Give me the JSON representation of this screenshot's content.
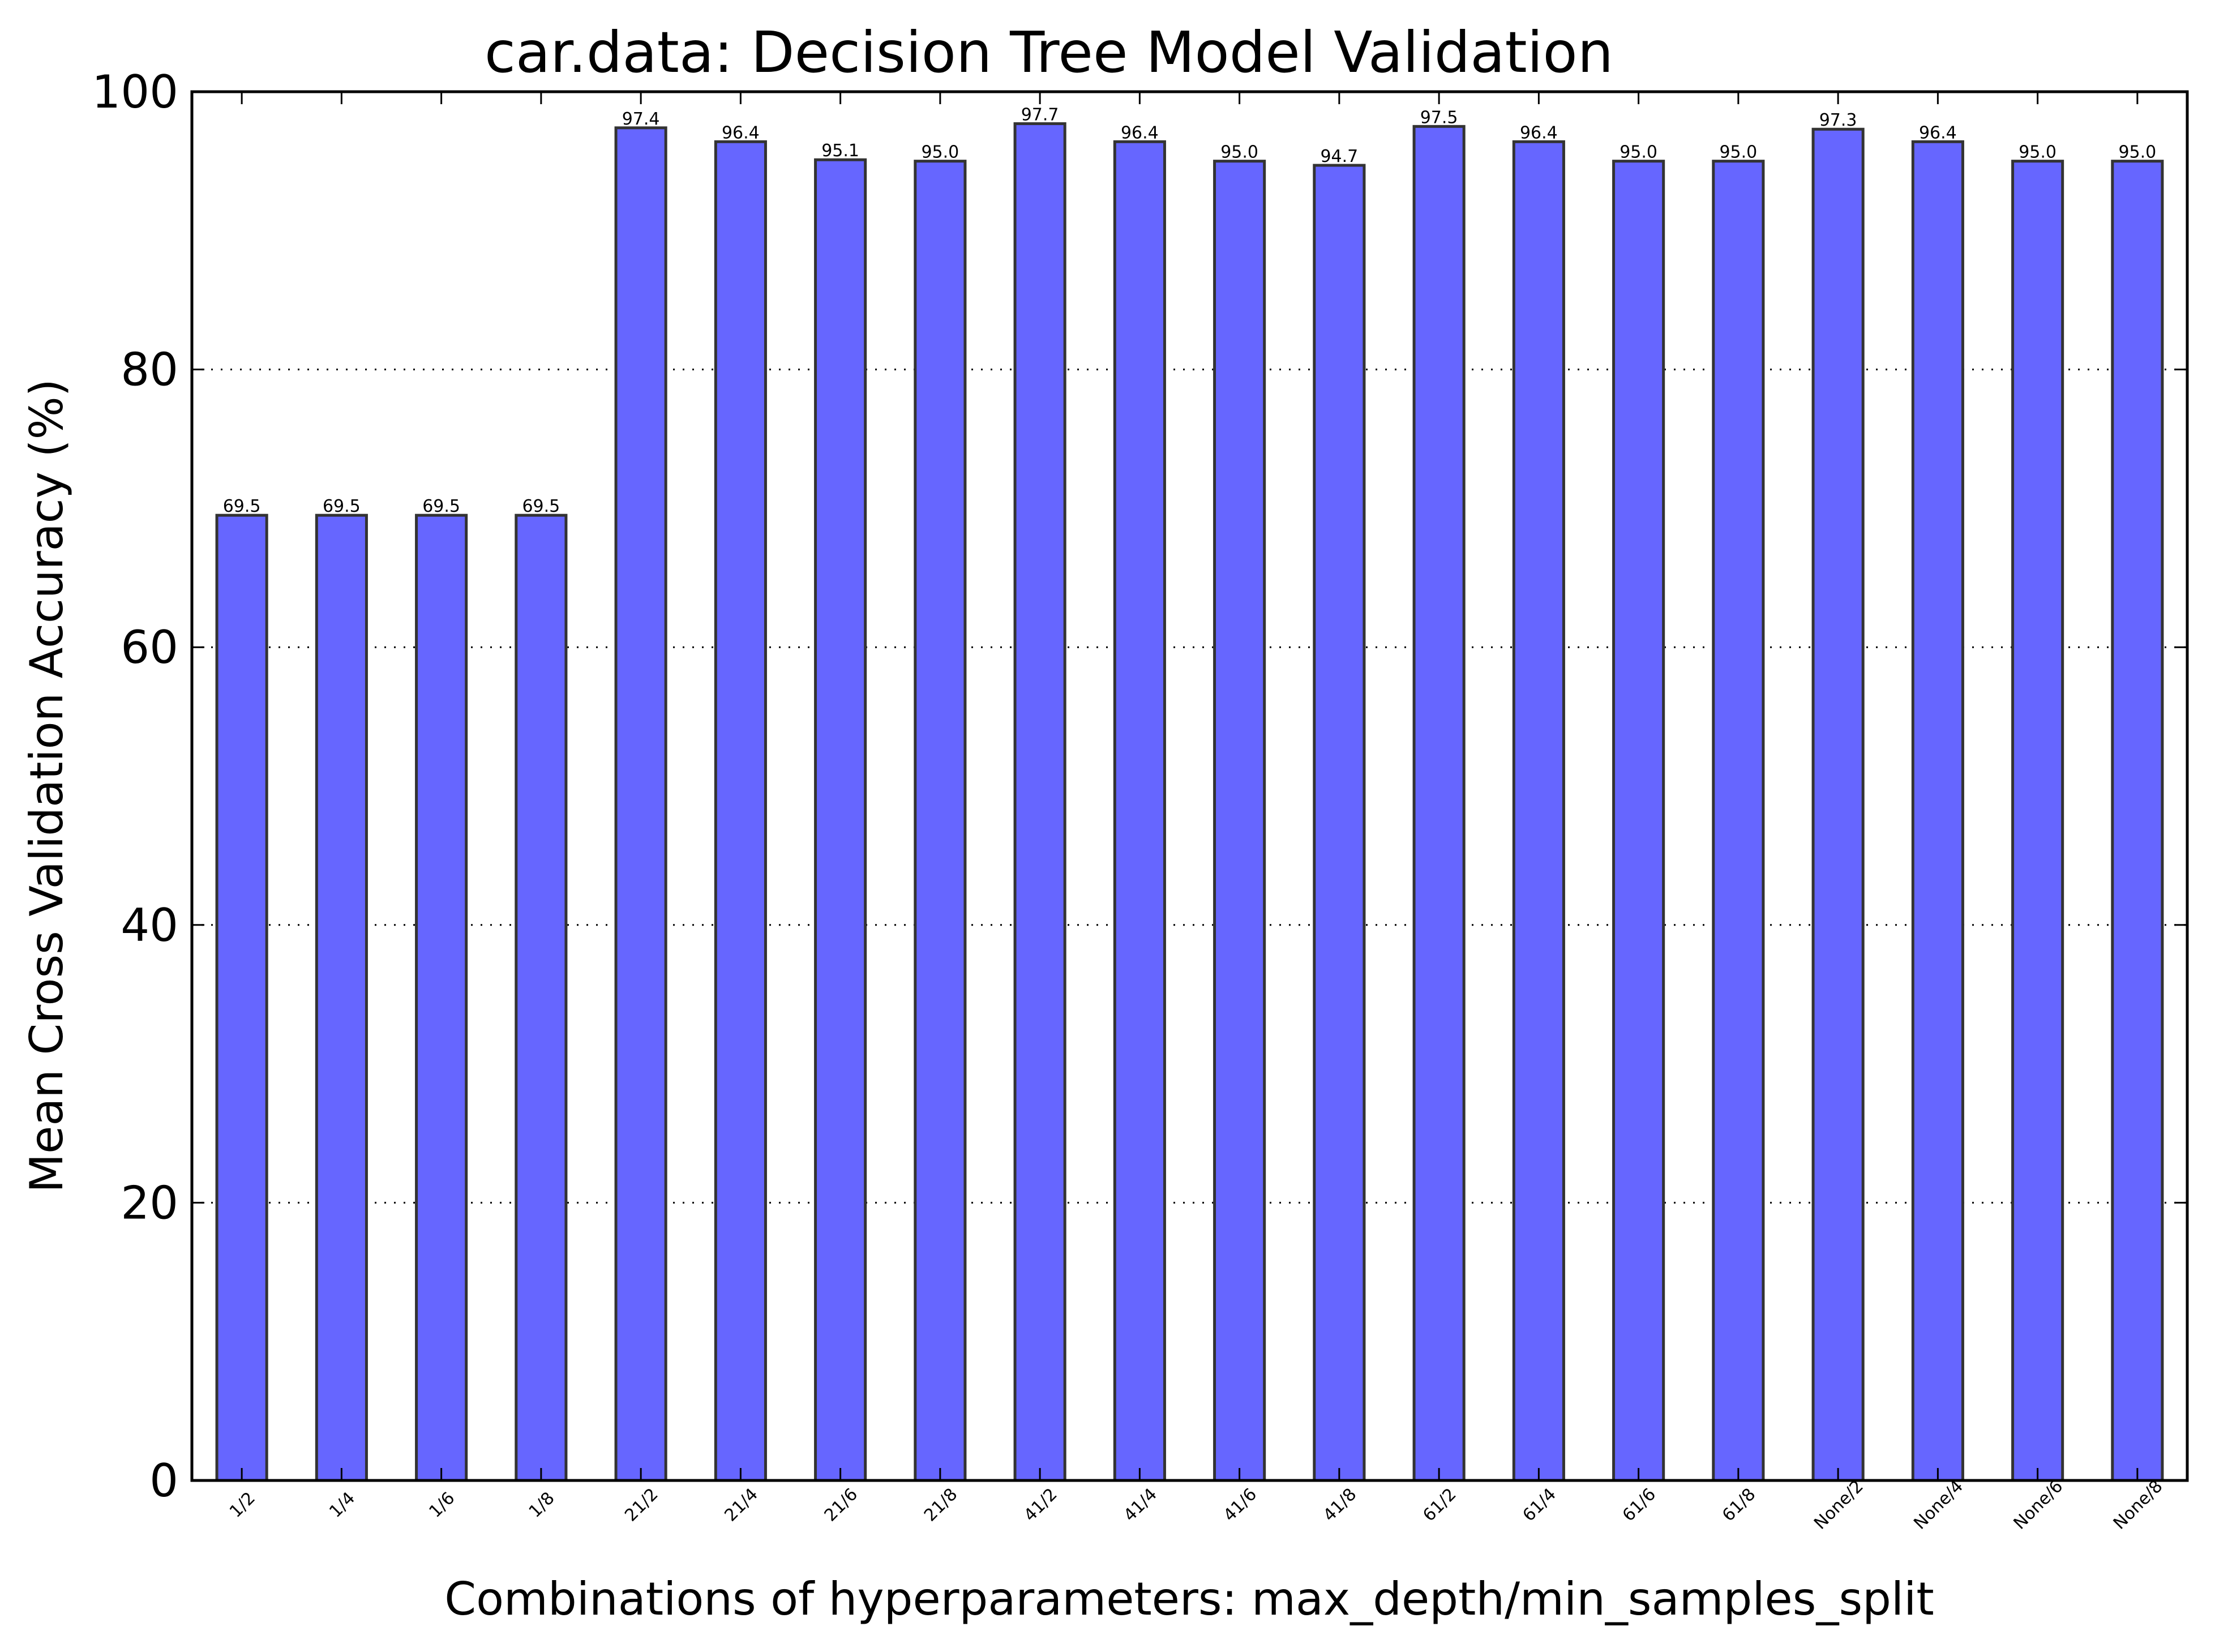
{
  "chart_data": {
    "type": "bar",
    "title": "car.data: Decision Tree Model Validation",
    "xlabel": "Combinations of hyperparameters: max_depth/min_samples_split",
    "ylabel": "Mean Cross Validation Accuracy (%)",
    "ylim": [
      0,
      100
    ],
    "yticks": [
      "0",
      "20",
      "40",
      "60",
      "80",
      "100"
    ],
    "grid": "horizontal dotted",
    "bar_color": "#6666ff",
    "bar_edge_color": "#333333",
    "categories": [
      "1/2",
      "1/4",
      "1/6",
      "1/8",
      "21/2",
      "21/4",
      "21/6",
      "21/8",
      "41/2",
      "41/4",
      "41/6",
      "41/8",
      "61/2",
      "61/4",
      "61/6",
      "61/8",
      "None/2",
      "None/4",
      "None/6",
      "None/8"
    ],
    "values": [
      69.5,
      69.5,
      69.5,
      69.5,
      97.4,
      96.4,
      95.1,
      95.0,
      97.7,
      96.4,
      95.0,
      94.7,
      97.5,
      96.4,
      95.0,
      95.0,
      97.3,
      96.4,
      95.0,
      95.0
    ],
    "data_labels": [
      "69.5",
      "69.5",
      "69.5",
      "69.5",
      "97.4",
      "96.4",
      "95.1",
      "95.0",
      "97.7",
      "96.4",
      "95.0",
      "94.7",
      "97.5",
      "96.4",
      "95.0",
      "95.0",
      "97.3",
      "96.4",
      "95.0",
      "95.0"
    ]
  }
}
